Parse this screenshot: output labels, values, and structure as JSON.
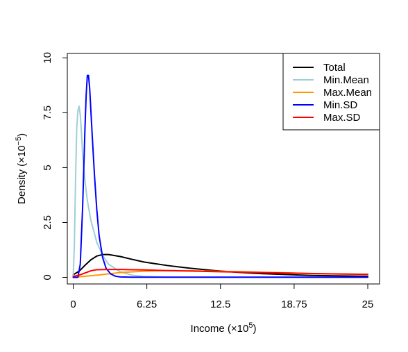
{
  "chart_data": {
    "type": "line",
    "xlabel": "Income",
    "xlabel_unit": "(×10",
    "xlabel_exp": "5",
    "xlabel_close": ")",
    "ylabel": "Density",
    "ylabel_unit": "(×10",
    "ylabel_exp": "−5",
    "ylabel_close": ")",
    "xlim": [
      -0.5,
      26
    ],
    "ylim": [
      -0.3,
      10.2
    ],
    "x_ticks": [
      0,
      6.25,
      12.5,
      18.75,
      25
    ],
    "x_tick_labels": [
      "0",
      "6.25",
      "12.5",
      "18.75",
      "25"
    ],
    "y_ticks": [
      0,
      2.5,
      5,
      7.5,
      10
    ],
    "y_tick_labels": [
      "0",
      "2.5",
      "5",
      "7.5",
      "10"
    ],
    "grid": false,
    "legend_position": "top-right",
    "series": [
      {
        "name": "Total",
        "color": "#000000",
        "x": [
          0,
          0.5,
          1,
          1.5,
          2,
          2.5,
          3,
          4,
          5,
          6,
          8,
          10,
          12,
          14,
          16,
          18,
          20,
          22,
          25
        ],
        "y": [
          0.12,
          0.28,
          0.55,
          0.8,
          0.97,
          1.04,
          1.04,
          0.95,
          0.82,
          0.7,
          0.54,
          0.41,
          0.31,
          0.23,
          0.17,
          0.13,
          0.09,
          0.07,
          0.05
        ]
      },
      {
        "name": "Min.Mean",
        "color": "#9ecfd6",
        "x": [
          0,
          0.1,
          0.2,
          0.3,
          0.4,
          0.5,
          0.6,
          0.7,
          0.8,
          1.0,
          1.2,
          1.5,
          2,
          2.5,
          3,
          4,
          5,
          6,
          8,
          25
        ],
        "y": [
          0,
          1.5,
          4.5,
          6.8,
          7.6,
          7.8,
          7.4,
          6.6,
          5.6,
          4.4,
          3.5,
          2.6,
          1.6,
          1.0,
          0.6,
          0.25,
          0.1,
          0.04,
          0.01,
          0
        ]
      },
      {
        "name": "Max.Mean",
        "color": "#ff9900",
        "x": [
          0,
          2,
          4,
          6,
          8,
          10,
          12,
          14,
          16,
          18,
          20,
          22,
          25
        ],
        "y": [
          0,
          0.1,
          0.22,
          0.28,
          0.31,
          0.3,
          0.28,
          0.26,
          0.23,
          0.21,
          0.18,
          0.16,
          0.14
        ]
      },
      {
        "name": "Min.SD",
        "color": "#0000ff",
        "x": [
          0,
          0.4,
          0.6,
          0.8,
          1.0,
          1.1,
          1.2,
          1.3,
          1.4,
          1.6,
          1.8,
          2.0,
          2.2,
          2.5,
          2.8,
          3.2,
          3.6,
          4,
          5,
          6,
          25
        ],
        "y": [
          0,
          0,
          0.6,
          3.2,
          6.8,
          8.3,
          9.2,
          9.2,
          8.6,
          6.6,
          4.7,
          3.1,
          1.9,
          0.9,
          0.4,
          0.15,
          0.05,
          0.02,
          0.01,
          0.01,
          0.01
        ]
      },
      {
        "name": "Max.SD",
        "color": "#ff0000",
        "x": [
          0,
          0.5,
          1,
          1.5,
          2,
          3,
          4,
          5,
          6,
          8,
          10,
          12,
          14,
          16,
          18,
          20,
          22,
          25
        ],
        "y": [
          0.05,
          0.1,
          0.2,
          0.3,
          0.35,
          0.36,
          0.36,
          0.35,
          0.34,
          0.31,
          0.29,
          0.26,
          0.24,
          0.22,
          0.2,
          0.18,
          0.16,
          0.14
        ]
      }
    ]
  }
}
